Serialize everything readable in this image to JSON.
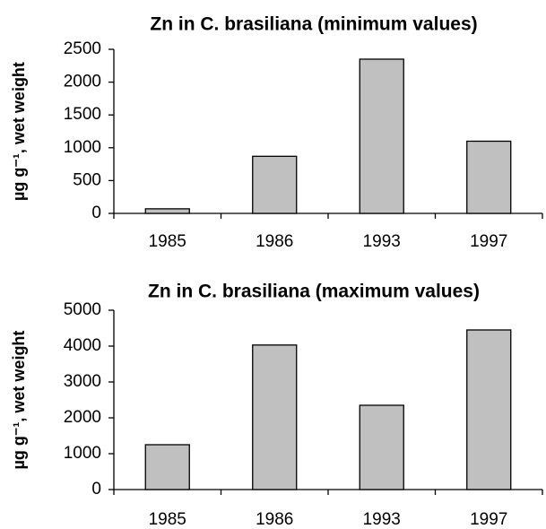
{
  "chart_data": [
    {
      "type": "bar",
      "title": "Zn in C. brasiliana (minimum values)",
      "y_label": "µg g⁻¹, wet weight",
      "categories": [
        "1985",
        "1986",
        "1993",
        "1997"
      ],
      "values": [
        70,
        870,
        2350,
        1100
      ],
      "color": "#c0c0c0",
      "ylim": [
        0,
        2500
      ],
      "yticks": [
        0,
        500,
        1000,
        1500,
        2000,
        2500
      ],
      "grid": false
    },
    {
      "type": "bar",
      "title": "Zn in C. brasiliana (maximum values)",
      "y_label": "µg g⁻¹, wet weight",
      "categories": [
        "1985",
        "1986",
        "1993",
        "1997"
      ],
      "values": [
        1250,
        4030,
        2350,
        4450
      ],
      "color": "#c0c0c0",
      "ylim": [
        0,
        5000
      ],
      "yticks": [
        0,
        1000,
        2000,
        3000,
        4000,
        5000
      ],
      "grid": false
    }
  ]
}
